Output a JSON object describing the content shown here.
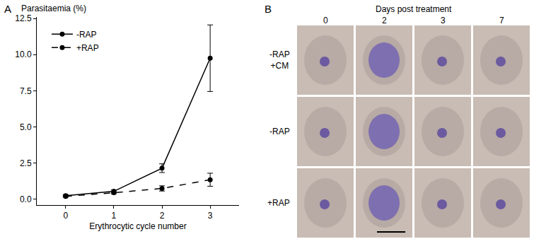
{
  "chart_data": {
    "type": "line",
    "panel_label": "A",
    "y_label": "Parasitaemia (%)",
    "x_label": "Erythrocytic cycle number",
    "x": [
      0,
      1,
      2,
      3
    ],
    "series": [
      {
        "name": "-RAP",
        "color": "#000000",
        "line_style": "solid",
        "marker": "circle",
        "values": [
          0.25,
          0.55,
          2.15,
          9.75
        ],
        "errors": [
          0.08,
          0.1,
          0.3,
          2.3
        ]
      },
      {
        "name": "+RAP",
        "color": "#000000",
        "line_style": "dash",
        "marker": "circle",
        "values": [
          0.2,
          0.45,
          0.75,
          1.35
        ],
        "errors": [
          0.05,
          0.08,
          0.18,
          0.45
        ]
      }
    ],
    "xlim": [
      -0.6,
      3.6
    ],
    "xticks": [
      0,
      1,
      2,
      3
    ],
    "ylim": [
      -0.4,
      12.6
    ],
    "yticks": [
      {
        "value": 0,
        "label": "0.0"
      },
      {
        "value": 2.5,
        "label": "2.5"
      },
      {
        "value": 5,
        "label": "5.0"
      },
      {
        "value": 7.5,
        "label": "7.5"
      },
      {
        "value": 10,
        "label": "10.0"
      },
      {
        "value": 12.5,
        "label": "12.5"
      }
    ],
    "grid": false,
    "legend": "upper left"
  },
  "micrograph_panel": {
    "label": "B",
    "title": "Days post treatment",
    "columns": [
      "0",
      "2",
      "3",
      "7"
    ],
    "rows": [
      [
        "-RAP",
        "+CM"
      ],
      [
        "-RAP"
      ],
      [
        "+RAP"
      ]
    ]
  }
}
